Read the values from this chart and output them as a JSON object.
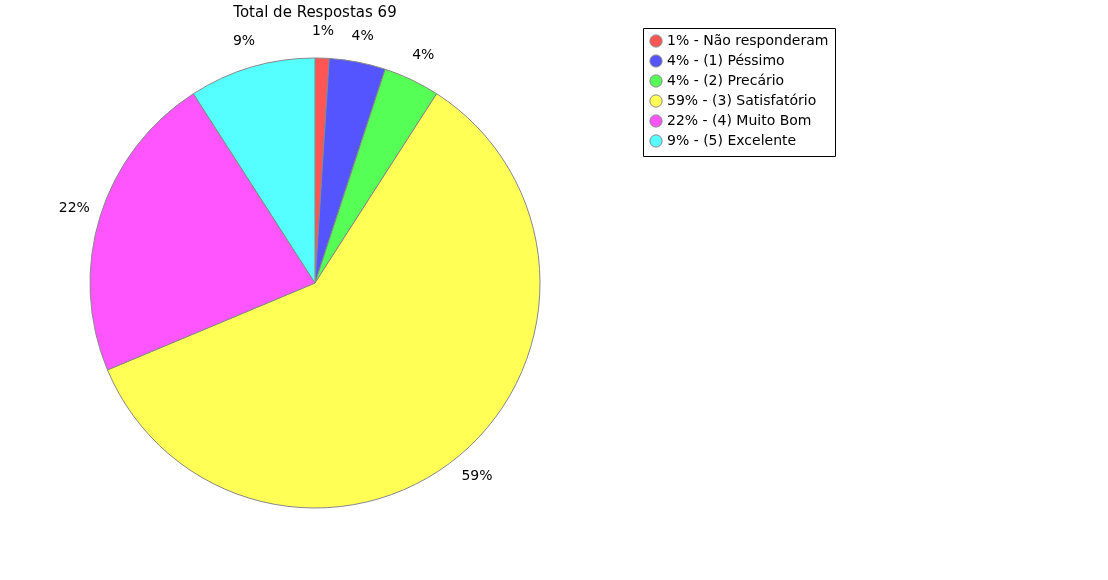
{
  "chart_data": {
    "type": "pie",
    "title": "Total de Respostas 69",
    "categories": [
      "1% - Não responderam",
      "4% - (1) Péssimo",
      "4% - (2) Precário",
      "59% - (3) Satisfatório",
      "22% - (4) Muito Bom",
      "9% - (5) Excelente"
    ],
    "values": [
      1,
      4,
      4,
      59,
      22,
      9
    ],
    "colors": [
      "#ff5555",
      "#5555ff",
      "#55ff55",
      "#ffff55",
      "#ff55ff",
      "#55ffff"
    ],
    "value_labels": [
      "1%",
      "4%",
      "4%",
      "59%",
      "22%",
      "9%"
    ],
    "legend": "right"
  }
}
